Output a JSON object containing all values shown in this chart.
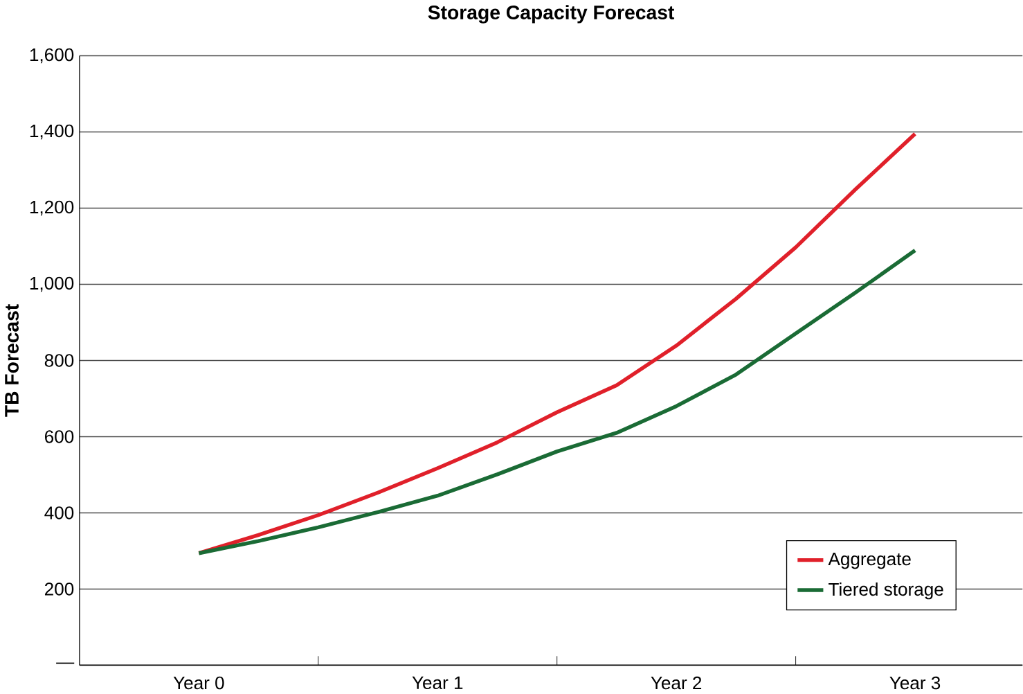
{
  "chart_data": {
    "type": "line",
    "title": "Storage Capacity Forecast",
    "ylabel": "TB Forecast",
    "categories": [
      "Year 0",
      null,
      null,
      null,
      "Year 1",
      null,
      null,
      null,
      "Year 2",
      null,
      null,
      null,
      "Year 3"
    ],
    "series": [
      {
        "name": "Aggregate",
        "color": "#e0202a",
        "values": [
          294,
          342,
          394,
          453,
          517,
          585,
          664,
          735,
          839,
          962,
          1097,
          1249,
          1395
        ]
      },
      {
        "name": "Tiered storage",
        "color": "#1a6b35",
        "values": [
          294,
          326,
          362,
          402,
          445,
          501,
          561,
          610,
          680,
          763,
          871,
          978,
          1089
        ]
      }
    ],
    "ylim": [
      0,
      1600
    ],
    "yticks": [
      {
        "value": 0,
        "label": "—"
      },
      200,
      400,
      600,
      800,
      {
        "value": 1000,
        "label": "1,000"
      },
      {
        "value": 1200,
        "label": "1,200"
      },
      {
        "value": 1400,
        "label": "1,400"
      },
      {
        "value": 1600,
        "label": "1,600"
      }
    ],
    "grid": "y",
    "legend": "bottom right",
    "marker": "none",
    "line_style": "solid"
  }
}
